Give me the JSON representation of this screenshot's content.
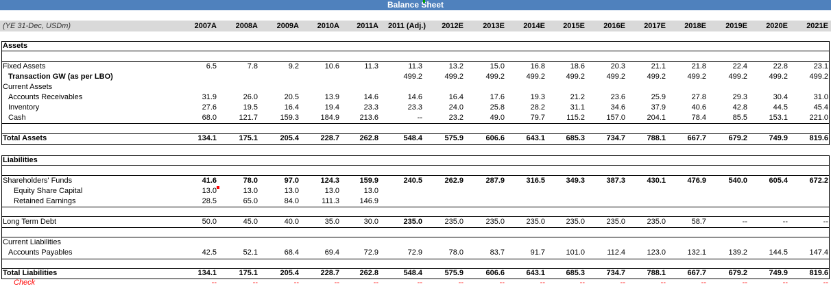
{
  "title": "Balance Sheet",
  "header": {
    "label": "(YE 31-Dec, USDm)",
    "years": [
      "2007A",
      "2008A",
      "2009A",
      "2010A",
      "2011A",
      "2011 (Adj.)",
      "2012E",
      "2013E",
      "2014E",
      "2015E",
      "2016E",
      "2017E",
      "2018E",
      "2019E",
      "2020E",
      "2021E"
    ]
  },
  "assets": {
    "section_title": "Assets",
    "rows": [
      {
        "label": "Fixed Assets",
        "values": [
          "6.5",
          "7.8",
          "9.2",
          "10.6",
          "11.3",
          "11.3",
          "13.2",
          "15.0",
          "16.8",
          "18.6",
          "20.3",
          "21.1",
          "21.8",
          "22.4",
          "22.8",
          "23.1"
        ]
      },
      {
        "label": "Transaction GW (as per LBO)",
        "values": [
          "",
          "",
          "",
          "",
          "",
          "499.2",
          "499.2",
          "499.2",
          "499.2",
          "499.2",
          "499.2",
          "499.2",
          "499.2",
          "499.2",
          "499.2",
          "499.2"
        ]
      },
      {
        "label": "Current Assets",
        "values": [
          "",
          "",
          "",
          "",
          "",
          "",
          "",
          "",
          "",
          "",
          "",
          "",
          "",
          "",
          "",
          ""
        ]
      },
      {
        "label": "Accounts Receivables",
        "values": [
          "31.9",
          "26.0",
          "20.5",
          "13.9",
          "14.6",
          "14.6",
          "16.4",
          "17.6",
          "19.3",
          "21.2",
          "23.6",
          "25.9",
          "27.8",
          "29.3",
          "30.4",
          "31.0"
        ]
      },
      {
        "label": "Inventory",
        "values": [
          "27.6",
          "19.5",
          "16.4",
          "19.4",
          "23.3",
          "23.3",
          "24.0",
          "25.8",
          "28.2",
          "31.1",
          "34.6",
          "37.9",
          "40.6",
          "42.8",
          "44.5",
          "45.4"
        ]
      },
      {
        "label": "Cash",
        "values": [
          "68.0",
          "121.7",
          "159.3",
          "184.9",
          "213.6",
          "--",
          "23.2",
          "49.0",
          "79.7",
          "115.2",
          "157.0",
          "204.1",
          "78.4",
          "85.5",
          "153.1",
          "221.0"
        ]
      }
    ],
    "total": {
      "label": "Total Assets",
      "values": [
        "134.1",
        "175.1",
        "205.4",
        "228.7",
        "262.8",
        "548.4",
        "575.9",
        "606.6",
        "643.1",
        "685.3",
        "734.7",
        "788.1",
        "667.7",
        "679.2",
        "749.9",
        "819.6"
      ]
    }
  },
  "liabilities": {
    "section_title": "Liabilities",
    "shareholders": {
      "label": "Shareholders' Funds",
      "values": [
        "41.6",
        "78.0",
        "97.0",
        "124.3",
        "159.9",
        "240.5",
        "262.9",
        "287.9",
        "316.5",
        "349.3",
        "387.3",
        "430.1",
        "476.9",
        "540.0",
        "605.4",
        "672.2"
      ]
    },
    "equity": {
      "label": "Equity Share Capital",
      "values": [
        "13.0",
        "13.0",
        "13.0",
        "13.0",
        "13.0",
        "",
        "",
        "",
        "",
        "",
        "",
        "",
        "",
        "",
        "",
        ""
      ]
    },
    "retained": {
      "label": "Retained Earnings",
      "values": [
        "28.5",
        "65.0",
        "84.0",
        "111.3",
        "146.9",
        "",
        "",
        "",
        "",
        "",
        "",
        "",
        "",
        "",
        "",
        ""
      ]
    },
    "ltd": {
      "label": "Long Term Debt",
      "values": [
        "50.0",
        "45.0",
        "40.0",
        "35.0",
        "30.0",
        "235.0",
        "235.0",
        "235.0",
        "235.0",
        "235.0",
        "235.0",
        "235.0",
        "58.7",
        "--",
        "--",
        "--"
      ]
    },
    "current": {
      "label": "Current Liabilities"
    },
    "payables": {
      "label": "Accounts Payables",
      "values": [
        "42.5",
        "52.1",
        "68.4",
        "69.4",
        "72.9",
        "72.9",
        "78.0",
        "83.7",
        "91.7",
        "101.0",
        "112.4",
        "123.0",
        "132.1",
        "139.2",
        "144.5",
        "147.4"
      ]
    },
    "total": {
      "label": "Total Liabilities",
      "values": [
        "134.1",
        "175.1",
        "205.4",
        "228.7",
        "262.8",
        "548.4",
        "575.9",
        "606.6",
        "643.1",
        "685.3",
        "734.7",
        "788.1",
        "667.7",
        "679.2",
        "749.9",
        "819.6"
      ]
    }
  },
  "check": {
    "label": "Check",
    "values": [
      "--",
      "--",
      "--",
      "--",
      "--",
      "--",
      "--",
      "--",
      "--",
      "--",
      "--",
      "--",
      "--",
      "--",
      "--",
      "--"
    ]
  }
}
